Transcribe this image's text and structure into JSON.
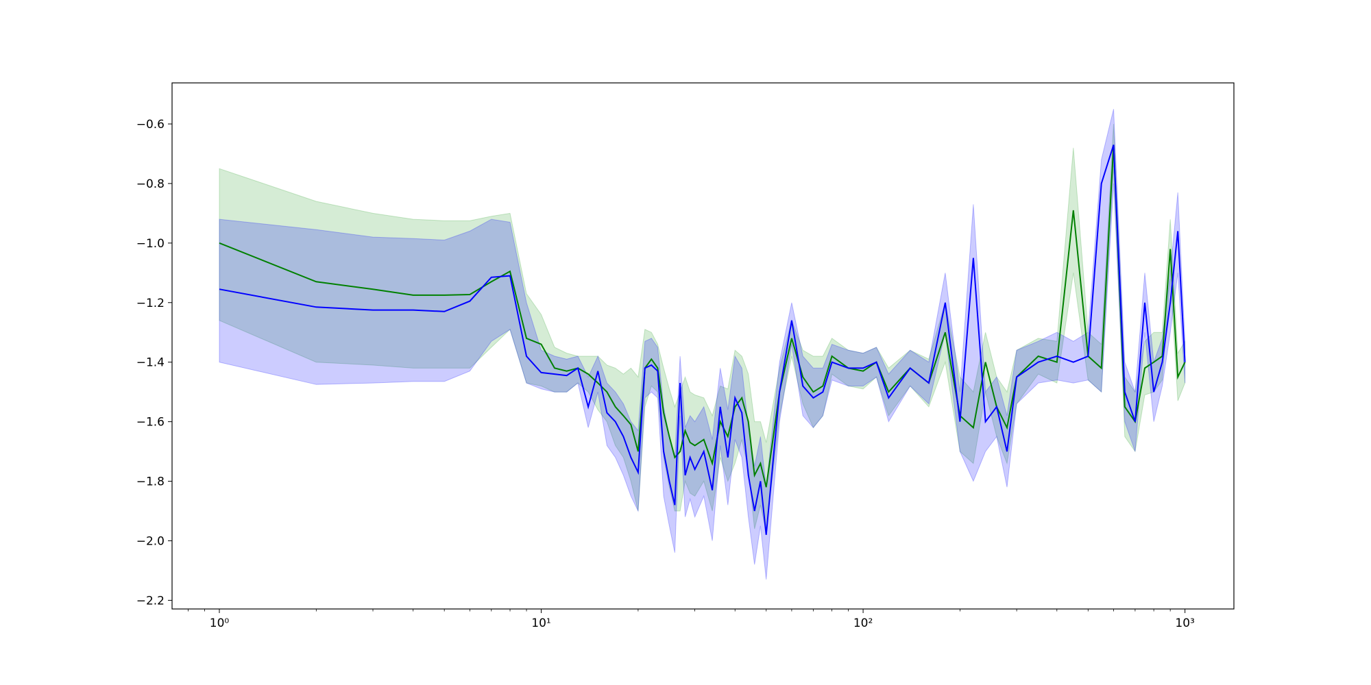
{
  "chart_data": {
    "type": "line",
    "xscale": "log",
    "xlim": [
      0.713,
      1419
    ],
    "ylim": [
      -2.229,
      -0.462
    ],
    "xticks": [
      {
        "value": 1,
        "label": "10⁰"
      },
      {
        "value": 10,
        "label": "10¹"
      },
      {
        "value": 100,
        "label": "10²"
      },
      {
        "value": 1000,
        "label": "10³"
      }
    ],
    "xminorticks": [
      0.8,
      0.9,
      2,
      3,
      4,
      5,
      6,
      7,
      8,
      9,
      20,
      30,
      40,
      50,
      60,
      70,
      80,
      90,
      200,
      300,
      400,
      500,
      600,
      700,
      800,
      900
    ],
    "yticks": [
      {
        "value": -0.6,
        "label": "−0.6"
      },
      {
        "value": -0.8,
        "label": "−0.8"
      },
      {
        "value": -1.0,
        "label": "−1.0"
      },
      {
        "value": -1.2,
        "label": "−1.2"
      },
      {
        "value": -1.4,
        "label": "−1.4"
      },
      {
        "value": -1.6,
        "label": "−1.6"
      },
      {
        "value": -1.8,
        "label": "−1.8"
      },
      {
        "value": -2.0,
        "label": "−2.0"
      },
      {
        "value": -2.2,
        "label": "−2.2"
      }
    ],
    "x": [
      1,
      2,
      3,
      4,
      5,
      6,
      7,
      8,
      9,
      10,
      11,
      12,
      13,
      14,
      15,
      16,
      17,
      18,
      19,
      20,
      21,
      22,
      23,
      24,
      25,
      26,
      27,
      28,
      29,
      30,
      32,
      34,
      36,
      38,
      40,
      42,
      44,
      46,
      48,
      50,
      55,
      60,
      65,
      70,
      75,
      80,
      90,
      100,
      110,
      120,
      140,
      160,
      180,
      200,
      220,
      240,
      260,
      280,
      300,
      350,
      400,
      450,
      500,
      550,
      600,
      650,
      700,
      750,
      800,
      850,
      900,
      950,
      1000
    ],
    "series": [
      {
        "color": "#008000",
        "band_color": "#2ca02c",
        "values": [
          -1.0,
          -1.13,
          -1.155,
          -1.175,
          -1.175,
          -1.173,
          -1.13,
          -1.095,
          -1.32,
          -1.34,
          -1.42,
          -1.43,
          -1.42,
          -1.44,
          -1.47,
          -1.5,
          -1.55,
          -1.58,
          -1.61,
          -1.7,
          -1.42,
          -1.39,
          -1.42,
          -1.57,
          -1.65,
          -1.72,
          -1.7,
          -1.63,
          -1.67,
          -1.68,
          -1.66,
          -1.74,
          -1.6,
          -1.65,
          -1.55,
          -1.52,
          -1.6,
          -1.78,
          -1.74,
          -1.82,
          -1.5,
          -1.32,
          -1.45,
          -1.5,
          -1.48,
          -1.38,
          -1.42,
          -1.43,
          -1.4,
          -1.5,
          -1.42,
          -1.47,
          -1.3,
          -1.58,
          -1.62,
          -1.4,
          -1.55,
          -1.62,
          -1.45,
          -1.38,
          -1.4,
          -0.89,
          -1.38,
          -1.42,
          -0.67,
          -1.55,
          -1.6,
          -1.42,
          -1.4,
          -1.38,
          -1.02,
          -1.45,
          -1.4
        ],
        "upper": [
          -0.75,
          -0.86,
          -0.9,
          -0.92,
          -0.925,
          -0.925,
          -0.91,
          -0.9,
          -1.17,
          -1.24,
          -1.35,
          -1.37,
          -1.38,
          -1.38,
          -1.38,
          -1.41,
          -1.42,
          -1.44,
          -1.42,
          -1.45,
          -1.29,
          -1.3,
          -1.34,
          -1.42,
          -1.49,
          -1.55,
          -1.5,
          -1.45,
          -1.5,
          -1.51,
          -1.52,
          -1.58,
          -1.48,
          -1.49,
          -1.36,
          -1.38,
          -1.44,
          -1.6,
          -1.6,
          -1.67,
          -1.42,
          -1.26,
          -1.36,
          -1.38,
          -1.38,
          -1.32,
          -1.36,
          -1.37,
          -1.35,
          -1.42,
          -1.36,
          -1.39,
          -1.2,
          -1.45,
          -1.5,
          -1.3,
          -1.45,
          -1.5,
          -1.36,
          -1.32,
          -1.33,
          -0.68,
          -1.3,
          -1.34,
          -0.6,
          -1.45,
          -1.5,
          -1.33,
          -1.3,
          -1.3,
          -0.92,
          -1.37,
          -1.33
        ],
        "lower": [
          -1.26,
          -1.4,
          -1.41,
          -1.42,
          -1.42,
          -1.42,
          -1.35,
          -1.29,
          -1.47,
          -1.48,
          -1.5,
          -1.5,
          -1.47,
          -1.5,
          -1.56,
          -1.6,
          -1.68,
          -1.72,
          -1.8,
          -1.9,
          -1.55,
          -1.48,
          -1.5,
          -1.72,
          -1.82,
          -1.9,
          -1.9,
          -1.8,
          -1.84,
          -1.85,
          -1.8,
          -1.9,
          -1.72,
          -1.8,
          -1.74,
          -1.66,
          -1.76,
          -1.96,
          -1.88,
          -1.97,
          -1.58,
          -1.38,
          -1.54,
          -1.62,
          -1.58,
          -1.44,
          -1.48,
          -1.49,
          -1.45,
          -1.58,
          -1.48,
          -1.55,
          -1.4,
          -1.7,
          -1.74,
          -1.5,
          -1.65,
          -1.74,
          -1.54,
          -1.44,
          -1.47,
          -1.1,
          -1.46,
          -1.5,
          -0.74,
          -1.65,
          -1.7,
          -1.51,
          -1.5,
          -1.46,
          -1.12,
          -1.53,
          -1.47
        ]
      },
      {
        "color": "#0000ff",
        "band_color": "#0000ff",
        "values": [
          -1.155,
          -1.215,
          -1.225,
          -1.225,
          -1.23,
          -1.195,
          -1.115,
          -1.11,
          -1.38,
          -1.435,
          -1.44,
          -1.445,
          -1.42,
          -1.55,
          -1.43,
          -1.57,
          -1.6,
          -1.65,
          -1.72,
          -1.77,
          -1.42,
          -1.41,
          -1.43,
          -1.7,
          -1.8,
          -1.88,
          -1.47,
          -1.78,
          -1.72,
          -1.76,
          -1.7,
          -1.83,
          -1.55,
          -1.72,
          -1.52,
          -1.57,
          -1.78,
          -1.9,
          -1.8,
          -1.98,
          -1.5,
          -1.26,
          -1.48,
          -1.52,
          -1.5,
          -1.4,
          -1.42,
          -1.42,
          -1.4,
          -1.52,
          -1.42,
          -1.47,
          -1.2,
          -1.6,
          -1.05,
          -1.6,
          -1.55,
          -1.7,
          -1.45,
          -1.4,
          -1.38,
          -1.4,
          -1.38,
          -0.8,
          -0.67,
          -1.5,
          -1.6,
          -1.2,
          -1.5,
          -1.4,
          -1.2,
          -0.96,
          -1.4
        ],
        "upper": [
          -0.92,
          -0.955,
          -0.98,
          -0.985,
          -0.99,
          -0.96,
          -0.92,
          -0.93,
          -1.2,
          -1.36,
          -1.38,
          -1.39,
          -1.38,
          -1.45,
          -1.38,
          -1.47,
          -1.5,
          -1.54,
          -1.6,
          -1.63,
          -1.33,
          -1.32,
          -1.35,
          -1.55,
          -1.65,
          -1.72,
          -1.38,
          -1.62,
          -1.58,
          -1.6,
          -1.55,
          -1.66,
          -1.42,
          -1.56,
          -1.38,
          -1.42,
          -1.62,
          -1.75,
          -1.65,
          -1.82,
          -1.4,
          -1.2,
          -1.38,
          -1.42,
          -1.42,
          -1.34,
          -1.36,
          -1.37,
          -1.35,
          -1.44,
          -1.36,
          -1.4,
          -1.1,
          -1.5,
          -0.87,
          -1.5,
          -1.45,
          -1.58,
          -1.36,
          -1.33,
          -1.3,
          -1.33,
          -1.3,
          -0.72,
          -0.55,
          -1.4,
          -1.5,
          -1.1,
          -1.4,
          -1.32,
          -1.1,
          -0.83,
          -1.33
        ],
        "lower": [
          -1.4,
          -1.475,
          -1.47,
          -1.465,
          -1.465,
          -1.43,
          -1.33,
          -1.29,
          -1.47,
          -1.49,
          -1.5,
          -1.5,
          -1.47,
          -1.62,
          -1.5,
          -1.68,
          -1.72,
          -1.78,
          -1.85,
          -1.9,
          -1.52,
          -1.5,
          -1.52,
          -1.85,
          -1.95,
          -2.04,
          -1.58,
          -1.92,
          -1.86,
          -1.92,
          -1.85,
          -2.0,
          -1.68,
          -1.88,
          -1.66,
          -1.72,
          -1.92,
          -2.08,
          -1.95,
          -2.13,
          -1.6,
          -1.34,
          -1.58,
          -1.62,
          -1.58,
          -1.46,
          -1.48,
          -1.48,
          -1.45,
          -1.6,
          -1.48,
          -1.54,
          -1.3,
          -1.7,
          -1.8,
          -1.7,
          -1.65,
          -1.82,
          -1.54,
          -1.47,
          -1.46,
          -1.47,
          -1.46,
          -1.5,
          -0.8,
          -1.6,
          -1.7,
          -1.3,
          -1.6,
          -1.48,
          -1.3,
          -1.1,
          -1.47
        ]
      }
    ]
  }
}
